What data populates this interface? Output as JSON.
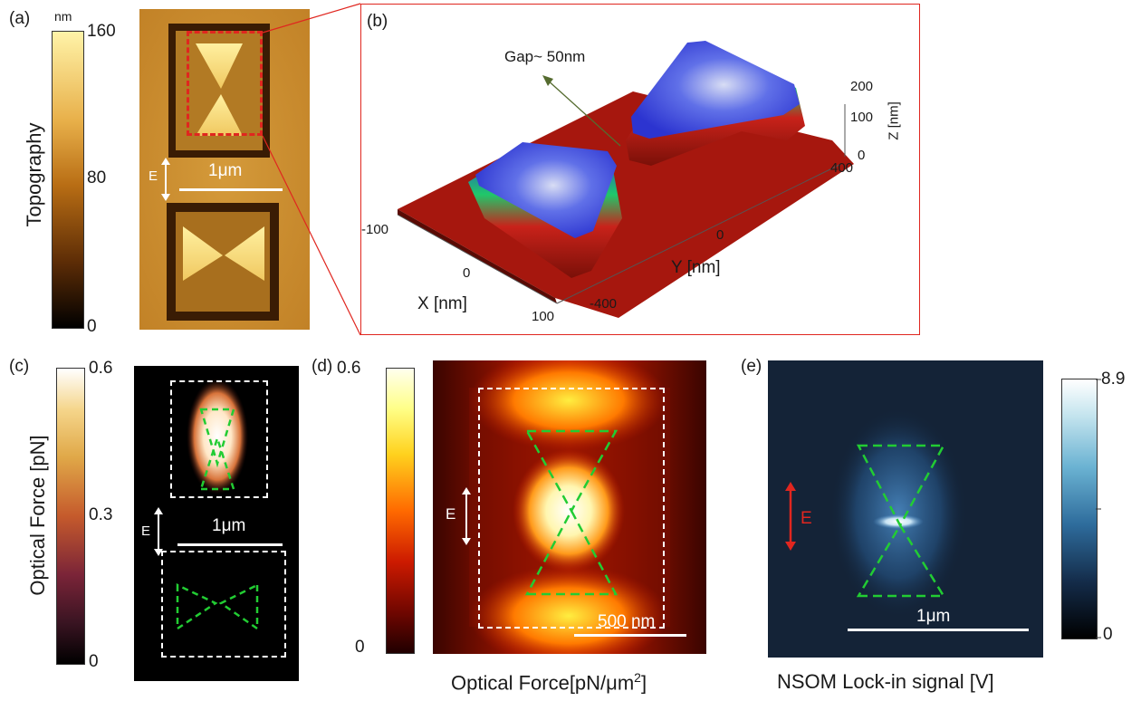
{
  "panel_a": {
    "label": "(a)",
    "colorbar_unit": "nm",
    "colorbar_ticks": [
      "160",
      "80",
      "0"
    ],
    "colorbar_title": "Topography",
    "e_label": "E",
    "scale_label": "1μm"
  },
  "panel_b": {
    "label": "(b)",
    "annotation": "Gap~ 50nm",
    "x_axis_label": "X [nm]",
    "x_ticks": [
      "-100",
      "0",
      "100"
    ],
    "y_axis_label": "Y [nm]",
    "y_ticks": [
      "-400",
      "0",
      "400"
    ],
    "z_axis_label": "Z [nm]",
    "z_ticks": [
      "200",
      "100",
      "0"
    ]
  },
  "panel_c": {
    "label": "(c)",
    "colorbar_title": "Optical Force [pN]",
    "colorbar_ticks": [
      "0.6",
      "0.3",
      "0"
    ],
    "e_label": "E",
    "scale_label": "1μm"
  },
  "panel_d": {
    "label": "(d)",
    "colorbar_ticks": [
      "0.6",
      "0"
    ],
    "e_label": "E",
    "scale_label": "500 nm",
    "caption_main": "Optical Force[pN/μm",
    "caption_sup": "2",
    "caption_end": "]"
  },
  "panel_e": {
    "label": "(e)",
    "colorbar_ticks": [
      "8.9",
      "0"
    ],
    "e_label": "E",
    "scale_label": "1μm",
    "caption": "NSOM Lock-in signal [V]"
  },
  "colors": {
    "red_dash": "#e0261f",
    "green_dash": "#22cc33",
    "surface_top": "#3a3ad8",
    "nsom_bg": "#0f1c2e"
  }
}
